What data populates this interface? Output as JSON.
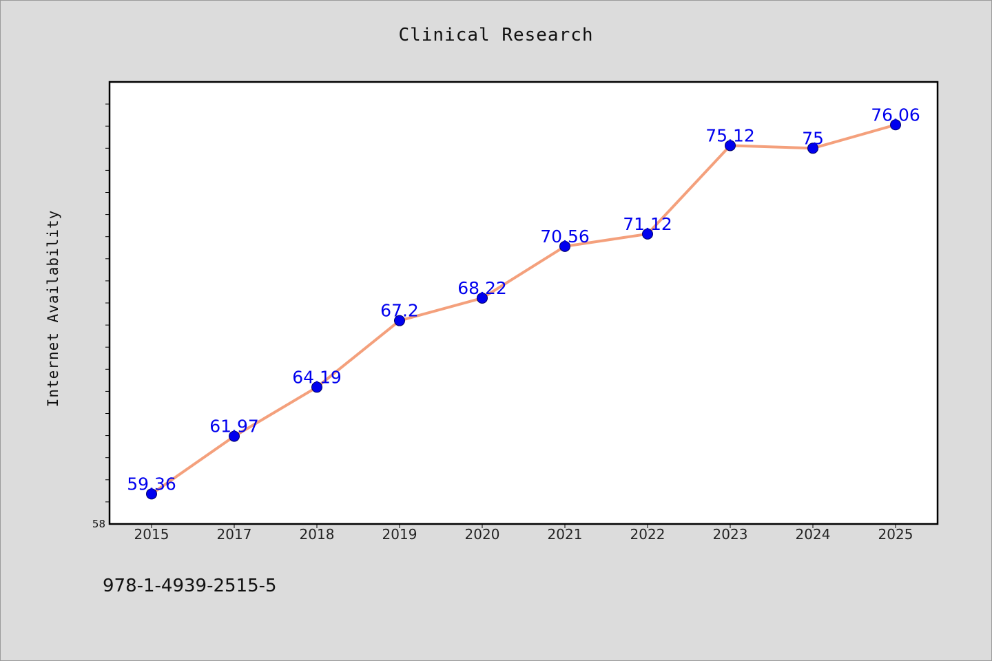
{
  "chart_data": {
    "type": "line",
    "title": "Clinical Research",
    "xlabel": "",
    "ylabel": "Internet Availability",
    "categories": [
      "2015",
      "2017",
      "2018",
      "2019",
      "2020",
      "2021",
      "2022",
      "2023",
      "2024",
      "2025"
    ],
    "series": [
      {
        "values": [
          59.36,
          61.97,
          64.19,
          67.2,
          68.22,
          70.56,
          71.12,
          75.12,
          75,
          76.06
        ]
      }
    ],
    "ylim": [
      58,
      78
    ],
    "y_tick_labels": [
      "58"
    ],
    "data_labels": [
      "59.36",
      "61.97",
      "64.19",
      "67.2",
      "68.22",
      "70.56",
      "71.12",
      "75.12",
      "75",
      "76.06"
    ],
    "grid": false,
    "legend": "none",
    "colors": {
      "line": "#f4a07c",
      "marker": "#0000ee",
      "marker_edge": "#000066",
      "data_label": "#0000ee",
      "plot_background": "#ffffff",
      "page_background": "#dcdcdc"
    }
  },
  "footer": {
    "code": "978-1-4939-2515-5"
  }
}
